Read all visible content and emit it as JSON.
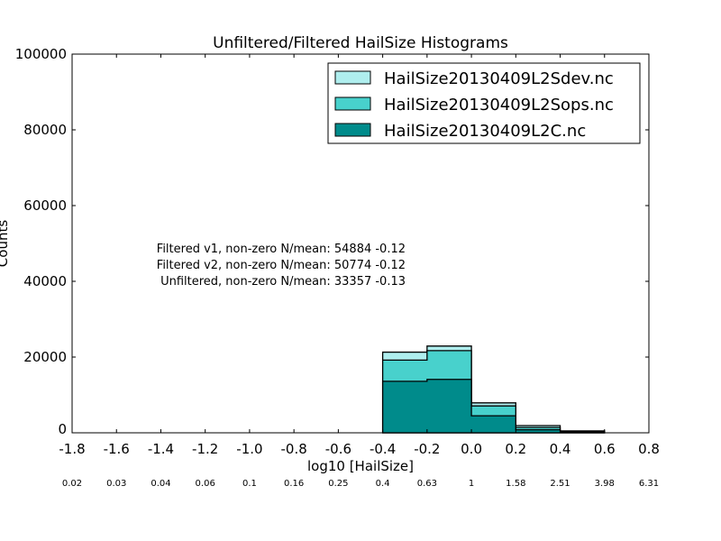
{
  "chart_data": {
    "type": "bar",
    "title": "Unfiltered/Filtered HailSize Histograms",
    "xlabel": "log10 [HailSize]",
    "ylabel": "Counts",
    "xlim": [
      -1.8,
      0.8
    ],
    "ylim": [
      0,
      100000
    ],
    "xticks": [
      "-1.8",
      "-1.6",
      "-1.4",
      "-1.2",
      "-1.0",
      "-0.8",
      "-0.6",
      "-0.4",
      "-0.2",
      "0.0",
      "0.2",
      "0.4",
      "0.6",
      "0.8"
    ],
    "xtick_values": [
      -1.8,
      -1.6,
      -1.4,
      -1.2,
      -1.0,
      -0.8,
      -0.6,
      -0.4,
      -0.2,
      0.0,
      0.2,
      0.4,
      0.6,
      0.8
    ],
    "secondary_xticks": [
      "0.02",
      "0.03",
      "0.04",
      "0.06",
      "0.1",
      "0.16",
      "0.25",
      "0.4",
      "0.63",
      "1",
      "1.58",
      "2.51",
      "3.98",
      "6.31"
    ],
    "yticks": [
      "0",
      "20000",
      "40000",
      "60000",
      "80000",
      "100000"
    ],
    "ytick_values": [
      0,
      20000,
      40000,
      60000,
      80000,
      100000
    ],
    "bin_edges": [
      -0.4,
      -0.2,
      0.0,
      0.2,
      0.4,
      0.6
    ],
    "series": [
      {
        "name": "HailSize20130409L2Sdev.nc",
        "color": "#afeeee",
        "values": [
          21300,
          22900,
          7900,
          1900,
          500
        ]
      },
      {
        "name": "HailSize20130409L2Sops.nc",
        "color": "#48d1cc",
        "values": [
          19200,
          21700,
          7100,
          1400,
          400
        ]
      },
      {
        "name": "HailSize20130409L2C.nc",
        "color": "#008b8b",
        "values": [
          13600,
          14100,
          4500,
          800,
          300
        ]
      }
    ],
    "legend_position": "top-right",
    "annotations": [
      "Filtered v1, non-zero N/mean: 54884 -0.12",
      "Filtered v2, non-zero N/mean: 50774 -0.12",
      "Unfiltered, non-zero N/mean: 33357 -0.13"
    ]
  }
}
